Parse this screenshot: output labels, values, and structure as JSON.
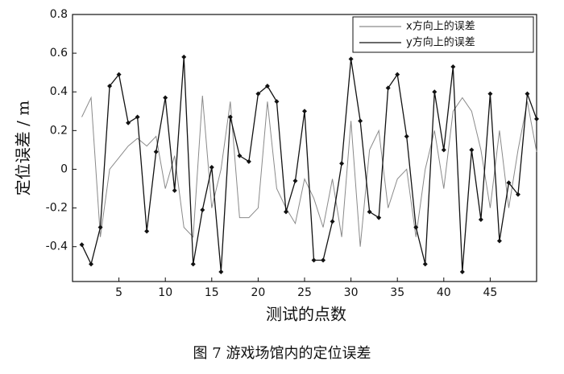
{
  "chart_data": {
    "type": "line",
    "caption": "图 7  游戏场馆内的定位误差",
    "xlabel": "测试的点数",
    "ylabel": "定位误差 / m",
    "x": [
      1,
      2,
      3,
      4,
      5,
      6,
      7,
      8,
      9,
      10,
      11,
      12,
      13,
      14,
      15,
      16,
      17,
      18,
      19,
      20,
      21,
      22,
      23,
      24,
      25,
      26,
      27,
      28,
      29,
      30,
      31,
      32,
      33,
      34,
      35,
      36,
      37,
      38,
      39,
      40,
      41,
      42,
      43,
      44,
      45,
      46,
      47,
      48,
      49,
      50
    ],
    "series": [
      {
        "name": "x方向上的误差",
        "color": "#8a8a8a",
        "marker": "none",
        "values": [
          0.27,
          0.37,
          -0.35,
          0.0,
          0.06,
          0.12,
          0.16,
          0.12,
          0.17,
          -0.1,
          0.07,
          -0.3,
          -0.35,
          0.38,
          -0.2,
          0.0,
          0.35,
          -0.25,
          -0.25,
          -0.2,
          0.35,
          -0.1,
          -0.2,
          -0.28,
          -0.05,
          -0.15,
          -0.3,
          -0.05,
          -0.35,
          0.25,
          -0.4,
          0.1,
          0.2,
          -0.2,
          -0.05,
          0.0,
          -0.35,
          0.0,
          0.2,
          -0.1,
          0.3,
          0.37,
          0.3,
          0.1,
          -0.2,
          0.2,
          -0.2,
          0.1,
          0.35,
          0.09
        ]
      },
      {
        "name": "y方向上的误差",
        "color": "#111111",
        "marker": "diamond",
        "values": [
          -0.39,
          -0.49,
          -0.3,
          0.43,
          0.49,
          0.24,
          0.27,
          -0.32,
          0.09,
          0.37,
          -0.11,
          0.58,
          -0.49,
          -0.21,
          0.01,
          -0.53,
          0.27,
          0.07,
          0.04,
          0.39,
          0.43,
          0.35,
          -0.22,
          -0.06,
          0.3,
          -0.47,
          -0.47,
          -0.27,
          0.03,
          0.57,
          0.25,
          -0.22,
          -0.25,
          0.42,
          0.49,
          0.17,
          -0.3,
          -0.49,
          0.4,
          0.1,
          0.53,
          -0.53,
          0.1,
          -0.26,
          0.39,
          -0.37,
          -0.07,
          -0.13,
          0.39,
          0.26
        ]
      }
    ],
    "xlim": [
      0,
      50
    ],
    "xticks": [
      5,
      10,
      15,
      20,
      25,
      30,
      35,
      40,
      45
    ],
    "ylim": [
      -0.58,
      0.8
    ],
    "yticks": [
      -0.4,
      -0.2,
      0,
      0.2,
      0.4,
      0.6,
      0.8
    ],
    "legend": "upper right"
  }
}
